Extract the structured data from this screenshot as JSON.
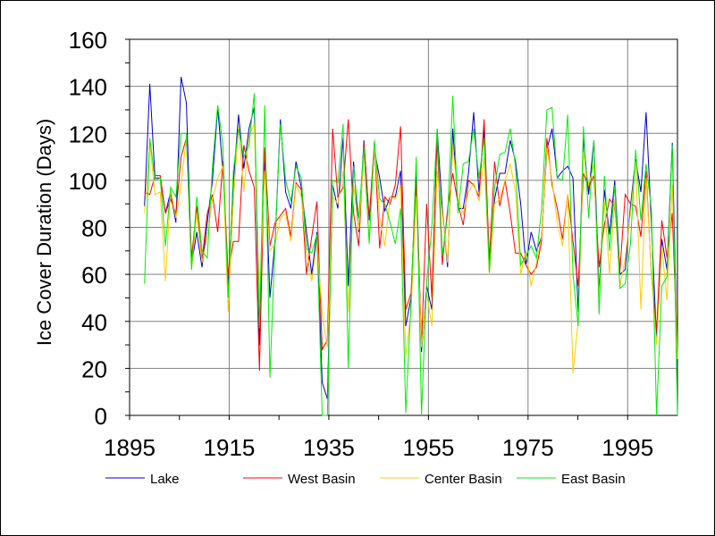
{
  "chart_data": {
    "type": "line",
    "ylabel": "Ice Cover Duration (Days)",
    "xlim": [
      1895,
      2005
    ],
    "ylim": [
      0,
      160
    ],
    "x_ticks": [
      1895,
      1915,
      1935,
      1955,
      1975,
      1995
    ],
    "y_ticks": [
      0,
      20,
      40,
      60,
      80,
      100,
      120,
      140,
      160
    ],
    "grid": true,
    "legend_position": "bottom",
    "x_start": 1898,
    "x_end": 2005,
    "series": [
      {
        "name": "Lake",
        "color": "#0000cc",
        "values": [
          89,
          141,
          101,
          101,
          86,
          95,
          82,
          144,
          133,
          64,
          78,
          63,
          82,
          100,
          131,
          104,
          55,
          99,
          128,
          105,
          122,
          131,
          30,
          112,
          50,
          75,
          126,
          95,
          88,
          108,
          97,
          78,
          60,
          78,
          14,
          7,
          98,
          88,
          118,
          55,
          108,
          78,
          117,
          83,
          113,
          101,
          87,
          93,
          93,
          104,
          38,
          50,
          104,
          27,
          55,
          45,
          122,
          88,
          63,
          122,
          88,
          88,
          103,
          129,
          95,
          122,
          61,
          92,
          103,
          103,
          117,
          108,
          90,
          64,
          78,
          70,
          76,
          113,
          122,
          101,
          104,
          106,
          101,
          44,
          118,
          94,
          117,
          52,
          96,
          77,
          100,
          60,
          62,
          89,
          109,
          95,
          129,
          82,
          32,
          75,
          62,
          116,
          20
        ]
      },
      {
        "name": "West Basin",
        "color": "#ff0000",
        "values": [
          95,
          94,
          102,
          102,
          86,
          92,
          86,
          110,
          118,
          67,
          89,
          66,
          86,
          94,
          78,
          108,
          60,
          74,
          74,
          115,
          104,
          97,
          19,
          114,
          72,
          82,
          85,
          88,
          76,
          99,
          96,
          60,
          76,
          91,
          28,
          32,
          122,
          93,
          97,
          126,
          86,
          72,
          116,
          84,
          116,
          71,
          93,
          90,
          98,
          123,
          45,
          52,
          99,
          30,
          90,
          50,
          118,
          64,
          88,
          103,
          90,
          81,
          100,
          98,
          93,
          126,
          66,
          108,
          89,
          100,
          86,
          69,
          69,
          64,
          60,
          63,
          74,
          118,
          98,
          88,
          75,
          94,
          74,
          55,
          103,
          97,
          102,
          63,
          81,
          92,
          89,
          62,
          94,
          90,
          89,
          76,
          104,
          60,
          36,
          83,
          67,
          86,
          25
        ]
      },
      {
        "name": "Center Basin",
        "color": "#ffcc00",
        "values": [
          86,
          116,
          94,
          95,
          57,
          96,
          84,
          98,
          118,
          62,
          86,
          65,
          76,
          92,
          101,
          106,
          44,
          91,
          123,
          95,
          119,
          124,
          48,
          104,
          70,
          73,
          84,
          86,
          74,
          98,
          93,
          70,
          57,
          74,
          43,
          29,
          93,
          90,
          104,
          44,
          98,
          79,
          112,
          74,
          115,
          84,
          72,
          93,
          92,
          98,
          25,
          44,
          93,
          29,
          52,
          38,
          104,
          86,
          65,
          115,
          92,
          86,
          95,
          99,
          91,
          110,
          60,
          90,
          92,
          100,
          107,
          95,
          60,
          70,
          55,
          65,
          76,
          114,
          100,
          82,
          72,
          94,
          18,
          40,
          112,
          98,
          107,
          50,
          91,
          60,
          92,
          55,
          67,
          86,
          108,
          45,
          101,
          61,
          30,
          72,
          49,
          98,
          24
        ]
      },
      {
        "name": "East Basin",
        "color": "#00ee00",
        "values": [
          56,
          118,
          100,
          101,
          72,
          97,
          93,
          120,
          120,
          62,
          93,
          70,
          67,
          106,
          132,
          115,
          50,
          104,
          122,
          110,
          115,
          137,
          37,
          132,
          16,
          75,
          124,
          100,
          91,
          106,
          101,
          71,
          69,
          77,
          0,
          0,
          100,
          99,
          124,
          20,
          106,
          84,
          114,
          73,
          117,
          92,
          90,
          82,
          73,
          88,
          1,
          48,
          110,
          0,
          57,
          80,
          122,
          68,
          85,
          136,
          86,
          107,
          108,
          122,
          101,
          118,
          61,
          97,
          111,
          112,
          122,
          106,
          64,
          68,
          72,
          67,
          88,
          130,
          131,
          101,
          100,
          128,
          60,
          38,
          123,
          84,
          117,
          43,
          102,
          70,
          98,
          54,
          56,
          73,
          113,
          83,
          107,
          88,
          0,
          55,
          59,
          115,
          0
        ]
      }
    ]
  }
}
